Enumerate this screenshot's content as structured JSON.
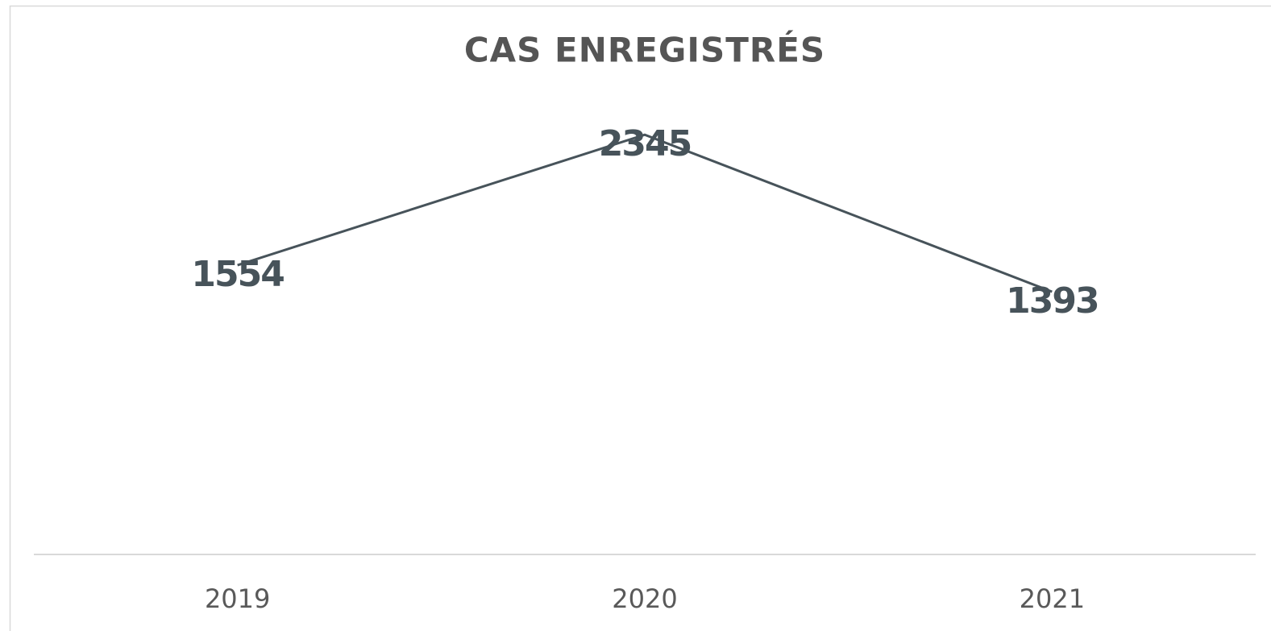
{
  "chart_data": {
    "type": "line",
    "title": "CAS ENREGISTRÉS",
    "categories": [
      "2019",
      "2020",
      "2021"
    ],
    "values": [
      1554,
      2345,
      1393
    ],
    "color": "#47535a",
    "ylim": [
      -200,
      2600
    ],
    "data_labels": true
  }
}
